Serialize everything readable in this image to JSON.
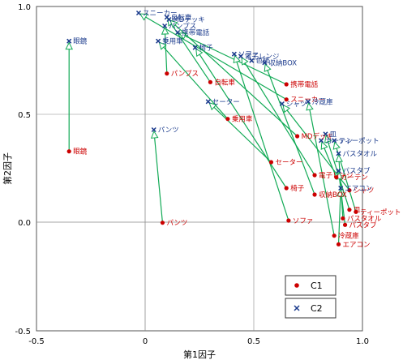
{
  "chart_data": {
    "type": "scatter",
    "title": "",
    "xlabel": "第1因子",
    "ylabel": "第2因子",
    "xlim": [
      -0.5,
      1.0
    ],
    "ylim": [
      -0.5,
      1.0
    ],
    "xticks": [
      "-0.5",
      "0",
      "0.5",
      "1.0"
    ],
    "yticks": [
      "-0.5",
      "0.0",
      "0.5",
      "1.0"
    ],
    "grid": "zero-lines",
    "legend_position": "bottom-right",
    "colors": {
      "C1": "#cc0000",
      "C2": "#1a3a8c",
      "arrow": "#11aa55"
    },
    "series": [
      {
        "name": "C1",
        "marker": "dot",
        "points": [
          {
            "label": "眼鏡",
            "x": -0.35,
            "y": 0.33
          },
          {
            "label": "パンプス",
            "x": 0.1,
            "y": 0.69
          },
          {
            "label": "自転車",
            "x": 0.3,
            "y": 0.65
          },
          {
            "label": "乗用車",
            "x": 0.38,
            "y": 0.48
          },
          {
            "label": "携帯電話",
            "x": 0.65,
            "y": 0.64
          },
          {
            "label": "スニーカー",
            "x": 0.65,
            "y": 0.57
          },
          {
            "label": "MDデッキ",
            "x": 0.7,
            "y": 0.4
          },
          {
            "label": "セーター",
            "x": 0.58,
            "y": 0.28
          },
          {
            "label": "電子レンジ",
            "x": 0.78,
            "y": 0.22
          },
          {
            "label": "椅子",
            "x": 0.65,
            "y": 0.16
          },
          {
            "label": "カーテン",
            "x": 0.88,
            "y": 0.21
          },
          {
            "label": "収納BOX",
            "x": 0.78,
            "y": 0.13
          },
          {
            "label": "シャツ",
            "x": 0.94,
            "y": 0.15
          },
          {
            "label": "皿",
            "x": 0.94,
            "y": 0.06
          },
          {
            "label": "ティーポット",
            "x": 0.97,
            "y": 0.05
          },
          {
            "label": "パスタオル",
            "x": 0.91,
            "y": 0.02
          },
          {
            "label": "パスタブ",
            "x": 0.92,
            "y": -0.01
          },
          {
            "label": "ソファ",
            "x": 0.66,
            "y": 0.01
          },
          {
            "label": "パンツ",
            "x": 0.08,
            "y": 0.0
          },
          {
            "label": "冷蔵庫",
            "x": 0.87,
            "y": -0.06
          },
          {
            "label": "エアコン",
            "x": 0.89,
            "y": -0.1
          }
        ]
      },
      {
        "name": "C2",
        "marker": "x",
        "points": [
          {
            "label": "眼鏡",
            "x": -0.35,
            "y": 0.84
          },
          {
            "label": "スニーカー",
            "x": -0.03,
            "y": 0.97
          },
          {
            "label": "自転車",
            "x": 0.1,
            "y": 0.95
          },
          {
            "label": "MDデッキ",
            "x": 0.11,
            "y": 0.94
          },
          {
            "label": "パンプス",
            "x": 0.09,
            "y": 0.91
          },
          {
            "label": "携帯電話",
            "x": 0.15,
            "y": 0.88
          },
          {
            "label": "乗用車",
            "x": 0.06,
            "y": 0.84
          },
          {
            "label": "椅子",
            "x": 0.23,
            "y": 0.81
          },
          {
            "label": "ソファ",
            "x": 0.41,
            "y": 0.78
          },
          {
            "label": "電子レンジ",
            "x": 0.44,
            "y": 0.77
          },
          {
            "label": "色紙",
            "x": 0.49,
            "y": 0.75
          },
          {
            "label": "収納BOX",
            "x": 0.55,
            "y": 0.74
          },
          {
            "label": "セーター",
            "x": 0.29,
            "y": 0.56
          },
          {
            "label": "冷蔵庫",
            "x": 0.75,
            "y": 0.56
          },
          {
            "label": "シャツ",
            "x": 0.63,
            "y": 0.55
          },
          {
            "label": "パンツ",
            "x": 0.04,
            "y": 0.43
          },
          {
            "label": "皿",
            "x": 0.83,
            "y": 0.41
          },
          {
            "label": "ティーポット",
            "x": 0.87,
            "y": 0.38
          },
          {
            "label": "カーテン",
            "x": 0.81,
            "y": 0.38
          },
          {
            "label": "パスタオル",
            "x": 0.89,
            "y": 0.32
          },
          {
            "label": "パスタブ",
            "x": 0.89,
            "y": 0.24
          },
          {
            "label": "エアコン",
            "x": 0.9,
            "y": 0.16
          }
        ]
      }
    ],
    "arrows": [
      {
        "item": "眼鏡",
        "from": [
          -0.35,
          0.33
        ],
        "to": [
          -0.35,
          0.84
        ]
      },
      {
        "item": "パンプス",
        "from": [
          0.1,
          0.69
        ],
        "to": [
          0.09,
          0.91
        ]
      },
      {
        "item": "自転車",
        "from": [
          0.3,
          0.65
        ],
        "to": [
          0.1,
          0.95
        ]
      },
      {
        "item": "乗用車",
        "from": [
          0.38,
          0.48
        ],
        "to": [
          0.06,
          0.84
        ]
      },
      {
        "item": "携帯電話",
        "from": [
          0.65,
          0.64
        ],
        "to": [
          0.15,
          0.88
        ]
      },
      {
        "item": "スニーカー",
        "from": [
          0.65,
          0.57
        ],
        "to": [
          -0.03,
          0.97
        ]
      },
      {
        "item": "MDデッキ",
        "from": [
          0.7,
          0.4
        ],
        "to": [
          0.11,
          0.94
        ]
      },
      {
        "item": "セーター",
        "from": [
          0.58,
          0.28
        ],
        "to": [
          0.29,
          0.56
        ]
      },
      {
        "item": "電子レンジ",
        "from": [
          0.78,
          0.22
        ],
        "to": [
          0.44,
          0.77
        ]
      },
      {
        "item": "椅子",
        "from": [
          0.65,
          0.16
        ],
        "to": [
          0.23,
          0.81
        ]
      },
      {
        "item": "カーテン",
        "from": [
          0.88,
          0.21
        ],
        "to": [
          0.81,
          0.38
        ]
      },
      {
        "item": "収納BOX",
        "from": [
          0.78,
          0.13
        ],
        "to": [
          0.55,
          0.74
        ]
      },
      {
        "item": "シャツ",
        "from": [
          0.94,
          0.15
        ],
        "to": [
          0.63,
          0.55
        ]
      },
      {
        "item": "皿",
        "from": [
          0.94,
          0.06
        ],
        "to": [
          0.83,
          0.41
        ]
      },
      {
        "item": "ティーポット",
        "from": [
          0.97,
          0.05
        ],
        "to": [
          0.87,
          0.38
        ]
      },
      {
        "item": "パスタオル",
        "from": [
          0.91,
          0.02
        ],
        "to": [
          0.89,
          0.32
        ]
      },
      {
        "item": "パスタブ",
        "from": [
          0.92,
          -0.01
        ],
        "to": [
          0.89,
          0.24
        ]
      },
      {
        "item": "ソファ",
        "from": [
          0.66,
          0.01
        ],
        "to": [
          0.41,
          0.78
        ]
      },
      {
        "item": "パンツ",
        "from": [
          0.08,
          0.0
        ],
        "to": [
          0.04,
          0.43
        ]
      },
      {
        "item": "冷蔵庫",
        "from": [
          0.87,
          -0.06
        ],
        "to": [
          0.75,
          0.56
        ]
      },
      {
        "item": "エアコン",
        "from": [
          0.89,
          -0.1
        ],
        "to": [
          0.9,
          0.16
        ]
      }
    ]
  }
}
